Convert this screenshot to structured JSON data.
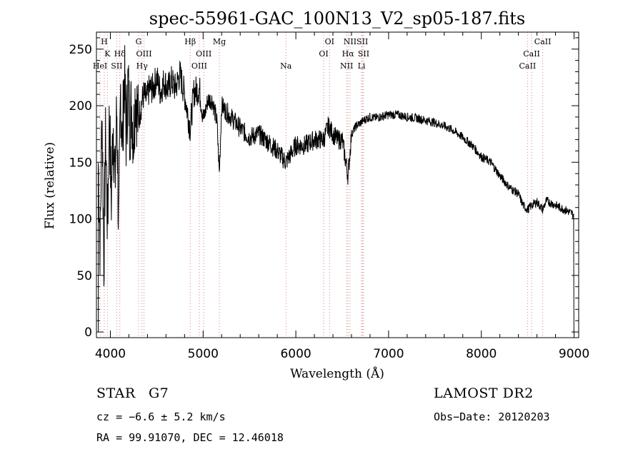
{
  "chart_data": {
    "type": "line",
    "title": "spec-55961-GAC_100N13_V2_sp05-187.fits",
    "xlabel": "Wavelength (Å)",
    "ylabel": "Flux (relative)",
    "xlim": [
      3850,
      9050
    ],
    "ylim": [
      -5,
      265
    ],
    "xticks": [
      4000,
      5000,
      6000,
      7000,
      8000,
      9000
    ],
    "yticks": [
      0,
      50,
      100,
      150,
      200,
      250
    ],
    "grid": false,
    "series": [
      {
        "color": "#000000",
        "x": [
          3870,
          3890,
          3910,
          3930,
          3950,
          3970,
          3990,
          4010,
          4030,
          4050,
          4070,
          4090,
          4110,
          4130,
          4150,
          4170,
          4190,
          4210,
          4230,
          4250,
          4270,
          4300,
          4330,
          4360,
          4390,
          4420,
          4460,
          4500,
          4540,
          4580,
          4620,
          4660,
          4700,
          4750,
          4800,
          4861,
          4900,
          4960,
          5007,
          5050,
          5100,
          5150,
          5175,
          5200,
          5250,
          5300,
          5400,
          5500,
          5600,
          5700,
          5800,
          5893,
          5950,
          6000,
          6100,
          6200,
          6300,
          6350,
          6400,
          6450,
          6500,
          6563,
          6600,
          6650,
          6700,
          6750,
          6800,
          6850,
          6900,
          6950,
          7000,
          7100,
          7200,
          7300,
          7400,
          7500,
          7600,
          7650,
          7700,
          7800,
          7900,
          8000,
          8100,
          8200,
          8300,
          8400,
          8450,
          8498,
          8542,
          8600,
          8662,
          8700,
          8800,
          8900,
          8950,
          8990
        ],
        "y": [
          150,
          75,
          200,
          65,
          175,
          90,
          195,
          115,
          190,
          130,
          200,
          85,
          215,
          165,
          230,
          175,
          220,
          185,
          200,
          170,
          215,
          185,
          200,
          210,
          205,
          215,
          215,
          225,
          212,
          222,
          215,
          222,
          215,
          228,
          210,
          180,
          212,
          215,
          188,
          205,
          205,
          185,
          140,
          200,
          195,
          190,
          180,
          172,
          175,
          168,
          160,
          150,
          158,
          165,
          165,
          170,
          170,
          182,
          175,
          170,
          170,
          138,
          175,
          182,
          185,
          188,
          190,
          189,
          190,
          191,
          192,
          192,
          190,
          189,
          187,
          185,
          182,
          180,
          178,
          172,
          165,
          155,
          150,
          138,
          128,
          122,
          112,
          108,
          112,
          115,
          108,
          116,
          112,
          108,
          106,
          104
        ]
      }
    ],
    "lines": [
      {
        "label": "H",
        "x": 3934,
        "row": 0
      },
      {
        "label": "K",
        "x": 3968,
        "row": 1
      },
      {
        "label": "Hδ",
        "x": 4102,
        "row": 1
      },
      {
        "label": "HeI",
        "x": 3889,
        "row": 2
      },
      {
        "label": "SII",
        "x": 4069,
        "row": 2
      },
      {
        "label": "G",
        "x": 4305,
        "row": 0
      },
      {
        "label": "OIII",
        "x": 4363,
        "row": 1
      },
      {
        "label": "Hγ",
        "x": 4341,
        "row": 2
      },
      {
        "label": "Hβ",
        "x": 4861,
        "row": 0
      },
      {
        "label": "Mg",
        "x": 5175,
        "row": 0
      },
      {
        "label": "OIII",
        "x": 5007,
        "row": 1
      },
      {
        "label": "OIII",
        "x": 4959,
        "row": 2
      },
      {
        "label": "Na",
        "x": 5893,
        "row": 2
      },
      {
        "label": "OI",
        "x": 6364,
        "row": 0
      },
      {
        "label": "OI",
        "x": 6300,
        "row": 1
      },
      {
        "label": "NII",
        "x": 6584,
        "row": 0
      },
      {
        "label": "SII",
        "x": 6717,
        "row": 0
      },
      {
        "label": "Hα",
        "x": 6563,
        "row": 1
      },
      {
        "label": "SII",
        "x": 6731,
        "row": 1
      },
      {
        "label": "NII",
        "x": 6548,
        "row": 2
      },
      {
        "label": "Li",
        "x": 6708,
        "row": 2
      },
      {
        "label": "CaII",
        "x": 8662,
        "row": 0
      },
      {
        "label": "CaII",
        "x": 8542,
        "row": 1
      },
      {
        "label": "CaII",
        "x": 8498,
        "row": 2
      }
    ]
  },
  "info": {
    "class_label": "STAR",
    "subclass": "G7",
    "survey": "LAMOST DR2",
    "cz": "cz = −6.6 ± 5.2 km/s",
    "obs_date": "Obs−Date: 20120203",
    "coords": "RA =  99.91070, DEC =  12.46018"
  }
}
